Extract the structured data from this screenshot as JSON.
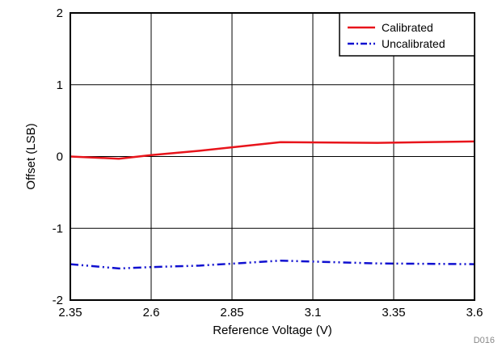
{
  "chart_data": {
    "type": "line",
    "title": "",
    "xlabel": "Reference Voltage (V)",
    "ylabel": "Offset (LSB)",
    "xlim": [
      2.35,
      3.6
    ],
    "ylim": [
      -2,
      2
    ],
    "x_ticks": [
      "2.35",
      "2.6",
      "2.85",
      "3.1",
      "3.35",
      "3.6"
    ],
    "y_ticks": [
      "2",
      "1",
      "0",
      "-1",
      "-2"
    ],
    "grid": true,
    "legend_position": "top-right",
    "figure_id": "D016",
    "series": [
      {
        "name": "Calibrated",
        "color": "#e8141b",
        "line_style": "solid",
        "x": [
          2.35,
          2.5,
          2.6,
          2.75,
          3.0,
          3.3,
          3.6
        ],
        "y": [
          0.0,
          -0.03,
          0.02,
          0.08,
          0.2,
          0.19,
          0.21
        ]
      },
      {
        "name": "Uncalibrated",
        "color": "#1010d0",
        "line_style": "dash-dot",
        "x": [
          2.35,
          2.5,
          2.6,
          2.75,
          3.0,
          3.3,
          3.6
        ],
        "y": [
          -1.5,
          -1.56,
          -1.54,
          -1.52,
          -1.45,
          -1.49,
          -1.5
        ]
      }
    ]
  }
}
